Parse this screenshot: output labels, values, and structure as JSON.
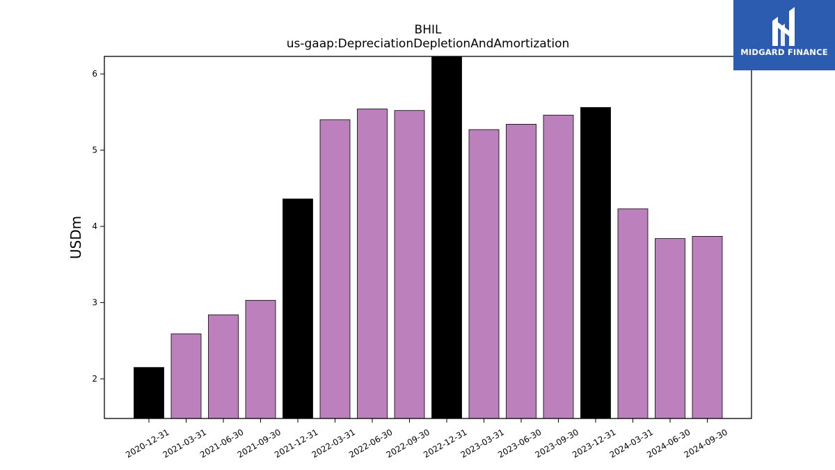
{
  "brand": {
    "name": "MIDGARD FINANCE",
    "color": "#2b5cb0"
  },
  "chart_data": {
    "type": "bar",
    "title": "BHIL",
    "subtitle": "us-gaap:DepreciationDepletionAndAmortization",
    "xlabel": "",
    "ylabel": "USDm",
    "ylim": [
      1.48,
      6.23
    ],
    "yticks": [
      2,
      3,
      4,
      5,
      6
    ],
    "grid": false,
    "categories": [
      "2020-12-31",
      "2021-03-31",
      "2021-06-30",
      "2021-09-30",
      "2021-12-31",
      "2022-03-31",
      "2022-06-30",
      "2022-09-30",
      "2022-12-31",
      "2023-03-31",
      "2023-06-30",
      "2023-09-30",
      "2023-12-31",
      "2024-03-31",
      "2024-06-30",
      "2024-09-30"
    ],
    "values": [
      2.15,
      2.59,
      2.84,
      3.03,
      4.36,
      5.4,
      5.54,
      5.52,
      6.23,
      5.27,
      5.34,
      5.46,
      5.56,
      4.23,
      3.84,
      3.87
    ],
    "colors": {
      "quarter": "#bc80bd",
      "year_end": "#000000",
      "edge": "#000000"
    }
  }
}
